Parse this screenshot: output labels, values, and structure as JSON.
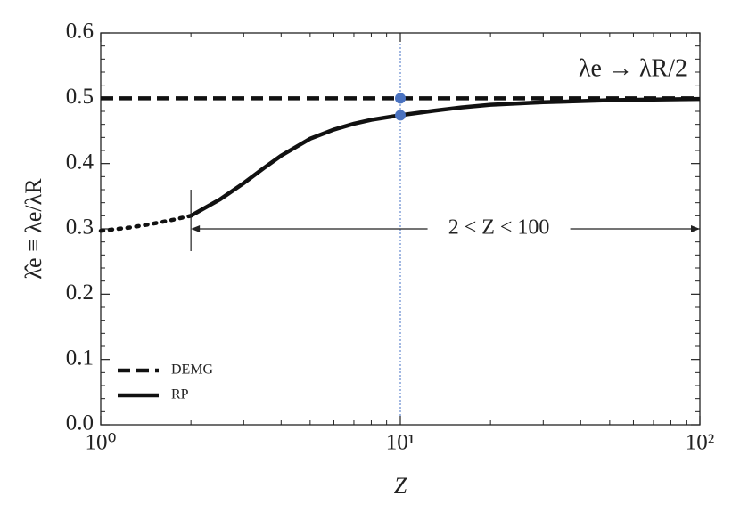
{
  "chart_data": {
    "type": "line",
    "log_x": true,
    "xlabel": "Z",
    "ylabel": "λ̂e ≡ λe/λR",
    "xlim": [
      1,
      100
    ],
    "ylim": [
      0,
      0.6
    ],
    "xticks": [
      {
        "value": 1,
        "label": "10⁰"
      },
      {
        "value": 10,
        "label": "10¹"
      },
      {
        "value": 100,
        "label": "10²"
      }
    ],
    "yticks": [
      {
        "value": 0,
        "label": "0.0"
      },
      0.1,
      0.2,
      0.3,
      0.4,
      0.5,
      0.6
    ],
    "legend": "lower left",
    "series": [
      {
        "name": "DEMG",
        "color": "#111111",
        "style": "dashed",
        "x": [
          1,
          100
        ],
        "values": [
          0.5,
          0.5
        ]
      },
      {
        "name": "RP",
        "color": "#111111",
        "style": "solid",
        "x": [
          2,
          2.5,
          3,
          3.5,
          4,
          5,
          6,
          7,
          8,
          10,
          13,
          16,
          20,
          30,
          50,
          70,
          100
        ],
        "values": [
          0.32,
          0.345,
          0.37,
          0.393,
          0.412,
          0.438,
          0.452,
          0.461,
          0.467,
          0.474,
          0.481,
          0.486,
          0.49,
          0.494,
          0.497,
          0.498,
          0.499
        ]
      },
      {
        "color": "#111111",
        "style": "dotted",
        "x": [
          1,
          1.25,
          1.5,
          1.75,
          2
        ],
        "values": [
          0.297,
          0.302,
          0.308,
          0.314,
          0.32
        ]
      }
    ],
    "vline": {
      "x": 10,
      "color": "#4472c4"
    },
    "points": {
      "color": "#4a72c0",
      "x": [
        10,
        10
      ],
      "values": [
        0.5,
        0.474
      ]
    },
    "annotations": [
      {
        "text": "λe → λR/2"
      },
      {
        "text": "2 < Z < 100",
        "x_range": [
          2,
          100
        ],
        "y": 0.3
      }
    ]
  }
}
